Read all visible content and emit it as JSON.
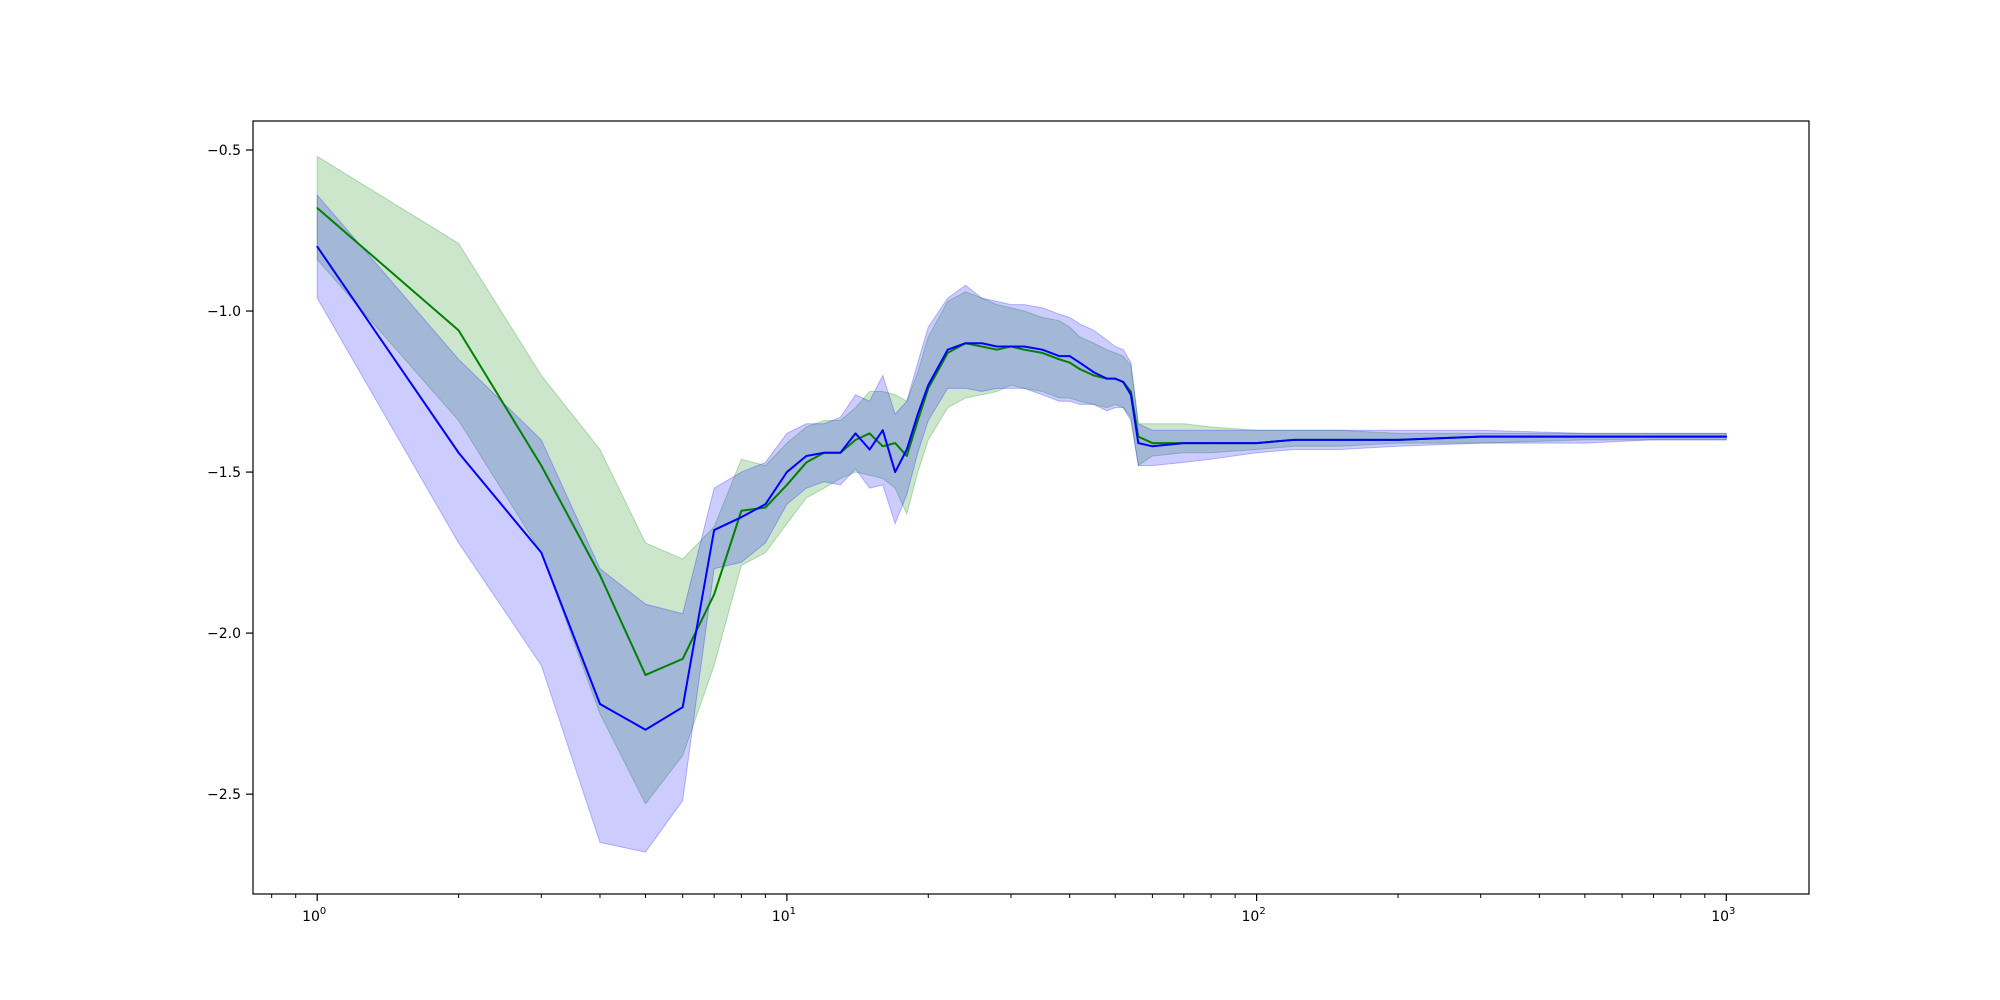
{
  "chart_data": {
    "type": "line",
    "title": "",
    "xlabel": "",
    "ylabel": "",
    "xscale": "log",
    "xlim": [
      0.73,
      1500
    ],
    "ylim": [
      -2.81,
      -0.41
    ],
    "grid": false,
    "legend": "none",
    "x_ticks": [
      {
        "value": 1,
        "base": "10",
        "exp": "0"
      },
      {
        "value": 10,
        "base": "10",
        "exp": "1"
      },
      {
        "value": 100,
        "base": "10",
        "exp": "2"
      },
      {
        "value": 1000,
        "base": "10",
        "exp": "3"
      }
    ],
    "y_ticks": [
      {
        "value": -0.5,
        "label": "−0.5"
      },
      {
        "value": -1.0,
        "label": "−1.0"
      },
      {
        "value": -1.5,
        "label": "−1.5"
      },
      {
        "value": -2.0,
        "label": "−2.0"
      },
      {
        "value": -2.5,
        "label": "−2.5"
      }
    ],
    "series": [
      {
        "color": "#008000",
        "band_color": "#008000",
        "band_opacity": 0.2,
        "x": [
          1,
          2,
          3,
          4,
          5,
          6,
          7,
          8,
          9,
          10,
          11,
          12,
          13,
          14,
          15,
          16,
          17,
          18,
          19,
          20,
          22,
          24,
          26,
          28,
          30,
          32,
          35,
          38,
          40,
          42,
          45,
          48,
          50,
          52,
          54,
          56,
          60,
          70,
          80,
          100,
          120,
          150,
          200,
          300,
          500,
          700,
          1000
        ],
        "y": [
          -0.68,
          -1.06,
          -1.48,
          -1.82,
          -2.13,
          -2.08,
          -1.88,
          -1.62,
          -1.61,
          -1.54,
          -1.47,
          -1.44,
          -1.44,
          -1.4,
          -1.38,
          -1.42,
          -1.41,
          -1.45,
          -1.34,
          -1.24,
          -1.13,
          -1.1,
          -1.11,
          -1.12,
          -1.11,
          -1.12,
          -1.13,
          -1.15,
          -1.16,
          -1.18,
          -1.2,
          -1.21,
          -1.21,
          -1.22,
          -1.25,
          -1.39,
          -1.41,
          -1.41,
          -1.41,
          -1.41,
          -1.4,
          -1.4,
          -1.4,
          -1.39,
          -1.39,
          -1.39,
          -1.39
        ],
        "lower": [
          -0.84,
          -1.34,
          -1.75,
          -2.25,
          -2.53,
          -2.38,
          -2.1,
          -1.79,
          -1.75,
          -1.66,
          -1.58,
          -1.55,
          -1.52,
          -1.5,
          -1.51,
          -1.52,
          -1.55,
          -1.63,
          -1.5,
          -1.4,
          -1.3,
          -1.27,
          -1.26,
          -1.25,
          -1.23,
          -1.24,
          -1.25,
          -1.27,
          -1.27,
          -1.28,
          -1.29,
          -1.3,
          -1.29,
          -1.3,
          -1.33,
          -1.48,
          -1.45,
          -1.44,
          -1.44,
          -1.43,
          -1.42,
          -1.42,
          -1.41,
          -1.41,
          -1.4,
          -1.4,
          -1.4
        ],
        "upper": [
          -0.52,
          -0.79,
          -1.2,
          -1.43,
          -1.72,
          -1.77,
          -1.67,
          -1.46,
          -1.48,
          -1.41,
          -1.36,
          -1.34,
          -1.34,
          -1.3,
          -1.25,
          -1.25,
          -1.26,
          -1.28,
          -1.19,
          -1.08,
          -0.97,
          -0.94,
          -0.96,
          -0.98,
          -0.99,
          -1.0,
          -1.02,
          -1.03,
          -1.05,
          -1.08,
          -1.1,
          -1.12,
          -1.13,
          -1.14,
          -1.17,
          -1.35,
          -1.35,
          -1.35,
          -1.36,
          -1.37,
          -1.37,
          -1.37,
          -1.38,
          -1.38,
          -1.38,
          -1.38,
          -1.38
        ]
      },
      {
        "color": "#0000ff",
        "band_color": "#0000ff",
        "band_opacity": 0.2,
        "x": [
          1,
          2,
          3,
          4,
          5,
          6,
          7,
          8,
          9,
          10,
          11,
          12,
          13,
          14,
          15,
          16,
          17,
          18,
          19,
          20,
          22,
          24,
          26,
          28,
          30,
          32,
          35,
          38,
          40,
          42,
          45,
          48,
          50,
          52,
          54,
          56,
          60,
          70,
          80,
          100,
          120,
          150,
          200,
          300,
          500,
          700,
          1000
        ],
        "y": [
          -0.8,
          -1.44,
          -1.75,
          -2.22,
          -2.3,
          -2.23,
          -1.68,
          -1.64,
          -1.6,
          -1.5,
          -1.45,
          -1.44,
          -1.44,
          -1.38,
          -1.43,
          -1.37,
          -1.5,
          -1.43,
          -1.32,
          -1.23,
          -1.12,
          -1.1,
          -1.1,
          -1.11,
          -1.11,
          -1.11,
          -1.12,
          -1.14,
          -1.14,
          -1.16,
          -1.19,
          -1.21,
          -1.21,
          -1.22,
          -1.26,
          -1.41,
          -1.42,
          -1.41,
          -1.41,
          -1.41,
          -1.4,
          -1.4,
          -1.4,
          -1.39,
          -1.39,
          -1.39,
          -1.39
        ],
        "lower": [
          -0.96,
          -1.72,
          -2.1,
          -2.65,
          -2.68,
          -2.52,
          -1.8,
          -1.78,
          -1.72,
          -1.6,
          -1.55,
          -1.53,
          -1.54,
          -1.49,
          -1.55,
          -1.54,
          -1.66,
          -1.57,
          -1.44,
          -1.34,
          -1.24,
          -1.24,
          -1.25,
          -1.24,
          -1.24,
          -1.24,
          -1.26,
          -1.28,
          -1.28,
          -1.29,
          -1.29,
          -1.31,
          -1.3,
          -1.3,
          -1.34,
          -1.48,
          -1.48,
          -1.47,
          -1.46,
          -1.44,
          -1.43,
          -1.43,
          -1.42,
          -1.41,
          -1.41,
          -1.4,
          -1.4
        ],
        "upper": [
          -0.64,
          -1.15,
          -1.4,
          -1.8,
          -1.91,
          -1.94,
          -1.55,
          -1.5,
          -1.47,
          -1.38,
          -1.35,
          -1.35,
          -1.33,
          -1.26,
          -1.28,
          -1.2,
          -1.32,
          -1.28,
          -1.16,
          -1.05,
          -0.96,
          -0.92,
          -0.96,
          -0.97,
          -0.98,
          -0.98,
          -0.99,
          -1.01,
          -1.02,
          -1.04,
          -1.06,
          -1.09,
          -1.11,
          -1.12,
          -1.16,
          -1.35,
          -1.37,
          -1.37,
          -1.37,
          -1.37,
          -1.37,
          -1.37,
          -1.37,
          -1.37,
          -1.38,
          -1.38,
          -1.38
        ]
      }
    ]
  }
}
